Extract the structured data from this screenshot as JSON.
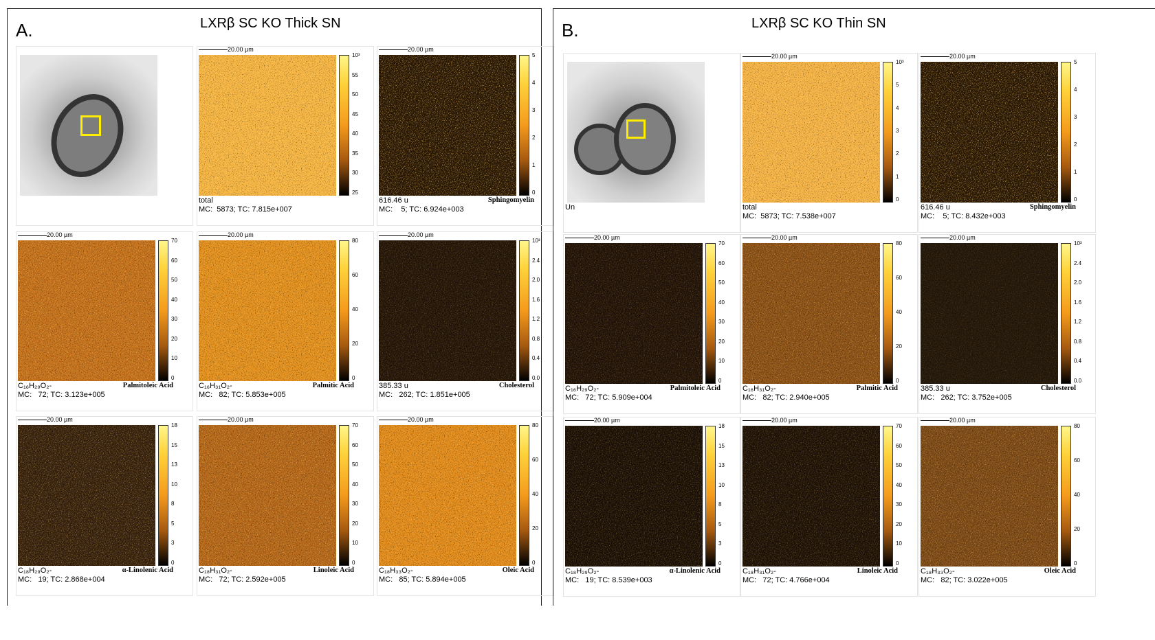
{
  "panels": [
    {
      "label": "A.",
      "title": "LXRβ SC KO Thick SN",
      "maps": [
        {
          "scale": "20.00 µm",
          "ticks": [
            "10³",
            "55",
            "50",
            "45",
            "40",
            "35",
            "30",
            "25"
          ],
          "mass": "total",
          "mc": "MC:  5873; TC: 7.815e+007"
        },
        {
          "scale": "20.00 µm",
          "ticks": [
            "5",
            "4",
            "3",
            "2",
            "1",
            "0"
          ],
          "mass": "616.46 u",
          "name": "Sphingomyelin",
          "mc": "MC:    5; TC: 6.924e+003"
        },
        {
          "scale": "20.00 µm",
          "ticks": [
            "70",
            "60",
            "50",
            "40",
            "30",
            "20",
            "10",
            "0"
          ],
          "mass": "C₁₆H₂₉O₂-",
          "name": "Palmitoleic Acid",
          "mc": "MC:   72; TC: 3.123e+005"
        },
        {
          "scale": "20.00 µm",
          "ticks": [
            "80",
            "60",
            "40",
            "20",
            "0"
          ],
          "mass": "C₁₆H₃₁O₂-",
          "name": "Palmitic Acid",
          "mc": "MC:   82; TC: 5.853e+005"
        },
        {
          "scale": "20.00 µm",
          "ticks": [
            "10³",
            "2.4",
            "2.0",
            "1.6",
            "1.2",
            "0.8",
            "0.4",
            "0.0"
          ],
          "mass": "385.33 u",
          "name": "Cholesterol",
          "mc": "MC:   262; TC: 1.851e+005"
        },
        {
          "scale": "20.00 µm",
          "ticks": [
            "18",
            "15",
            "13",
            "10",
            "8",
            "5",
            "3",
            "0"
          ],
          "mass": "C₁₈H₂₉O₂-",
          "name": "α-Linolenic Acid",
          "mc": "MC:   19; TC: 2.868e+004"
        },
        {
          "scale": "20.00 µm",
          "ticks": [
            "70",
            "60",
            "50",
            "40",
            "30",
            "20",
            "10",
            "0"
          ],
          "mass": "C₁₈H₃₁O₂-",
          "name": "Linoleic Acid",
          "mc": "MC:   72; TC: 2.592e+005"
        },
        {
          "scale": "20.00 µm",
          "ticks": [
            "80",
            "60",
            "40",
            "20",
            "0"
          ],
          "mass": "C₁₈H₃₃O₂-",
          "name": "Oleic Acid",
          "mc": "MC:   85; TC: 5.894e+005"
        }
      ]
    },
    {
      "label": "B.",
      "title": "LXRβ SC KO Thin SN",
      "optical_caption": "Un",
      "maps": [
        {
          "scale": "20.00 µm",
          "ticks": [
            "10³",
            "5",
            "4",
            "3",
            "2",
            "1",
            "0"
          ],
          "mass": "total",
          "mc": "MC:  5873; TC: 7.538e+007"
        },
        {
          "scale": "20.00 µm",
          "ticks": [
            "5",
            "4",
            "3",
            "2",
            "1",
            "0"
          ],
          "mass": "616.46 u",
          "name": "Sphingomyelin",
          "mc": "MC:    5; TC: 8.432e+003"
        },
        {
          "scale": "20.00 µm",
          "ticks": [
            "70",
            "60",
            "50",
            "40",
            "30",
            "20",
            "10",
            "0"
          ],
          "mass": "C₁₆H₂₉O₂-",
          "name": "Palmitoleic Acid",
          "mc": "MC:   72; TC: 5.909e+004"
        },
        {
          "scale": "20.00 µm",
          "ticks": [
            "80",
            "60",
            "40",
            "20",
            "0"
          ],
          "mass": "C₁₆H₃₁O₂-",
          "name": "Palmitic Acid",
          "mc": "MC:   82; TC: 2.940e+005"
        },
        {
          "scale": "20.00 µm",
          "ticks": [
            "10³",
            "2.4",
            "2.0",
            "1.6",
            "1.2",
            "0.8",
            "0.4",
            "0.0"
          ],
          "mass": "385.33 u",
          "name": "Cholesterol",
          "mc": "MC:   262; TC: 3.752e+005"
        },
        {
          "scale": "20.00 µm",
          "ticks": [
            "18",
            "15",
            "13",
            "10",
            "8",
            "5",
            "3",
            "0"
          ],
          "mass": "C₁₈H₂₉O₂-",
          "name": "α-Linolenic Acid",
          "mc": "MC:   19; TC: 8.539e+003"
        },
        {
          "scale": "20.00 µm",
          "ticks": [
            "70",
            "60",
            "50",
            "40",
            "30",
            "20",
            "10",
            "0"
          ],
          "mass": "C₁₈H₃₁O₂-",
          "name": "Linoleic Acid",
          "mc": "MC:   72; TC: 4.766e+004"
        },
        {
          "scale": "20.00 µm",
          "ticks": [
            "80",
            "60",
            "40",
            "20",
            "0"
          ],
          "mass": "C₁₈H₃₃O₂-",
          "name": "Oleic Acid",
          "mc": "MC:   82; TC: 3.022e+005"
        }
      ]
    }
  ]
}
